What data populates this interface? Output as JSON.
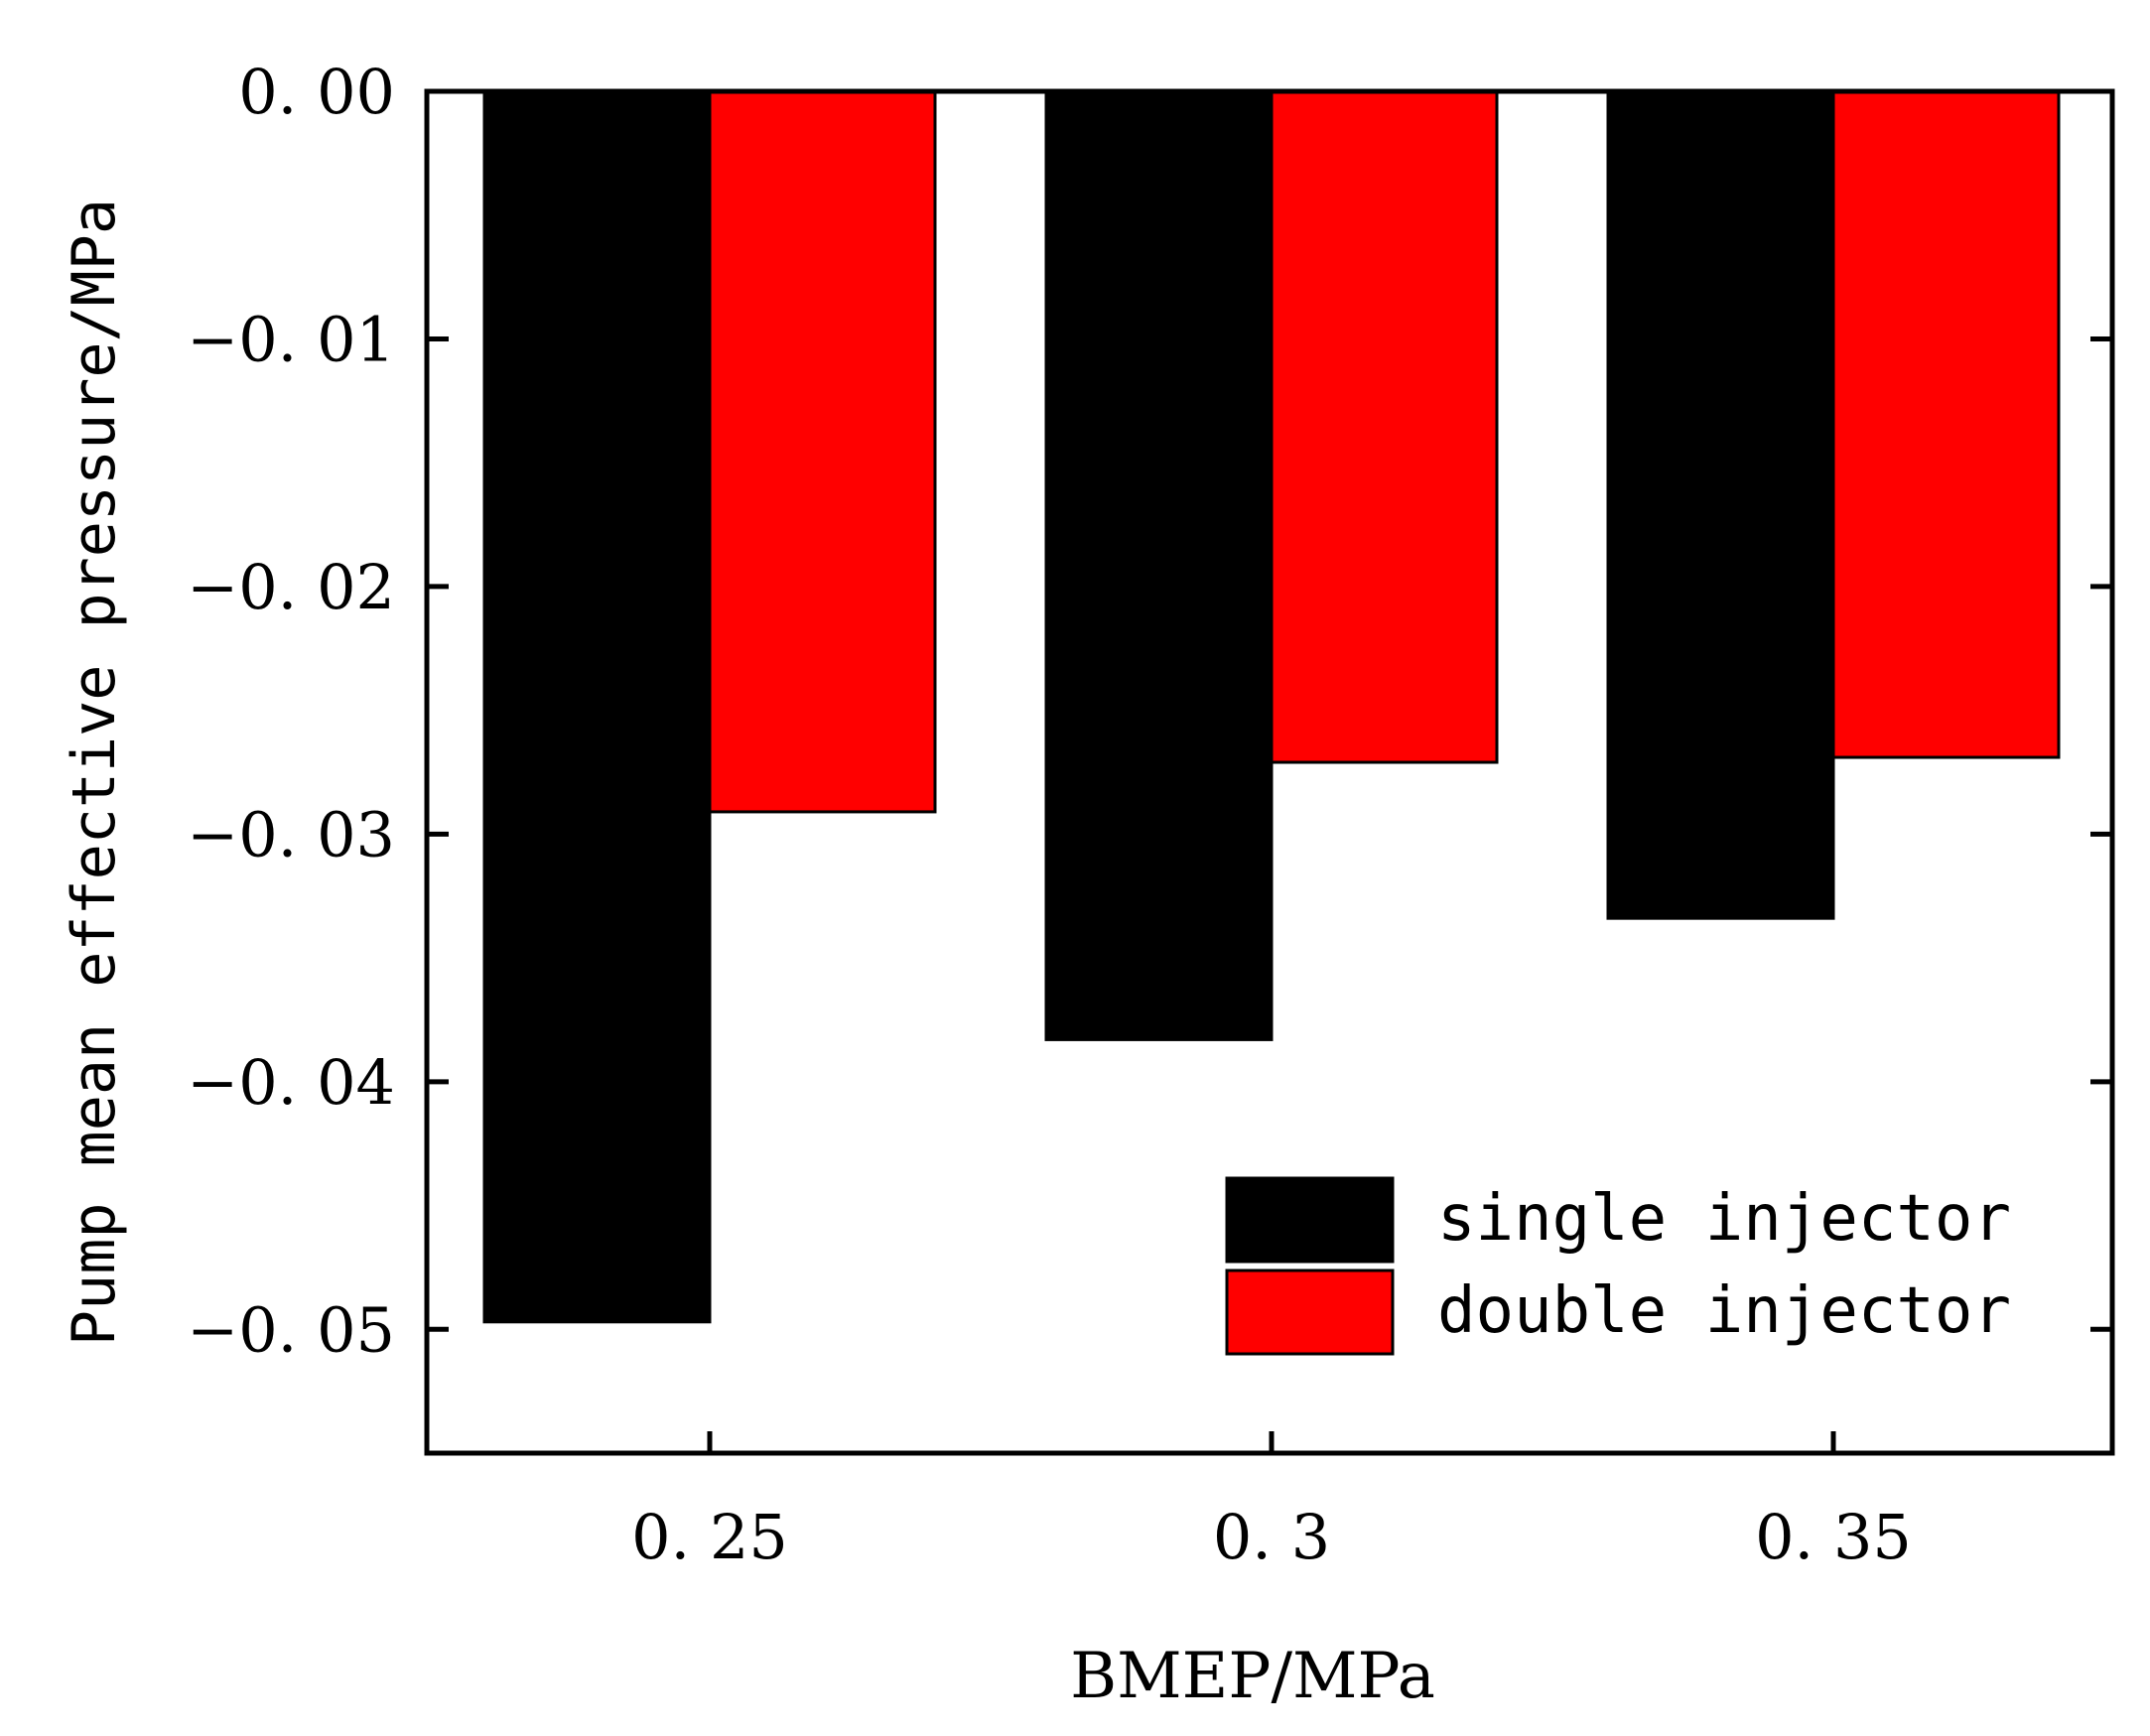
{
  "chart_data": {
    "type": "bar",
    "categories": [
      "0. 25",
      "0. 3",
      "0. 35"
    ],
    "series": [
      {
        "name": "single injector",
        "values": [
          -0.0497,
          -0.0383,
          -0.0334
        ],
        "color": "#000000"
      },
      {
        "name": "double injector",
        "values": [
          -0.0291,
          -0.0271,
          -0.0269
        ],
        "color": "#ff0000"
      }
    ],
    "title": "",
    "xlabel": "BMEP/MPa",
    "ylabel": "Pump mean effective pressure/MPa",
    "ylim": [
      -0.055,
      0.0
    ],
    "yticks": [
      0.0,
      -0.01,
      -0.02,
      -0.03,
      -0.04,
      -0.05
    ],
    "ytick_labels": [
      "0. 00",
      "−0. 01",
      "−0. 02",
      "−0. 03",
      "−0. 04",
      "−0. 05"
    ],
    "grid": false,
    "legend_position": "bottom-right"
  }
}
